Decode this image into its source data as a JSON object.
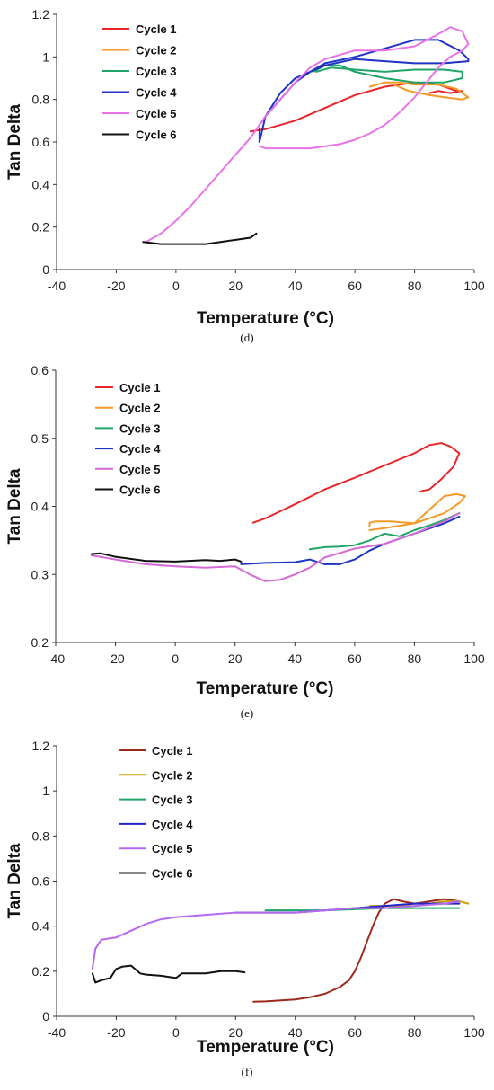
{
  "chart_data": [
    {
      "type": "line",
      "panel_label": "(d)",
      "xlabel": "Temperature (°C)",
      "ylabel": "Tan Delta",
      "xlim": [
        -40,
        100
      ],
      "ylim": [
        0,
        1.2
      ],
      "xticks": [
        -40,
        -20,
        0,
        20,
        40,
        60,
        80,
        100
      ],
      "yticks": [
        0,
        0.2,
        0.4,
        0.6,
        0.8,
        1,
        1.2
      ],
      "ytick_labels": [
        "0",
        "0.2",
        "0.4",
        "0.6",
        "0.8",
        "1",
        "1.2"
      ],
      "grid": false,
      "legend_position": "top-left",
      "series": [
        {
          "name": "Cycle 1",
          "color": "#e8262a",
          "x": [
            25,
            30,
            40,
            50,
            60,
            70,
            80,
            88,
            94,
            96,
            92,
            88,
            85
          ],
          "y": [
            0.65,
            0.66,
            0.7,
            0.76,
            0.82,
            0.86,
            0.88,
            0.87,
            0.84,
            0.84,
            0.83,
            0.84,
            0.83
          ]
        },
        {
          "name": "Cycle 2",
          "color": "#f39a2b",
          "x": [
            65,
            70,
            75,
            80,
            88,
            94,
            98,
            96,
            90,
            85,
            78,
            73
          ],
          "y": [
            0.86,
            0.88,
            0.88,
            0.87,
            0.87,
            0.85,
            0.81,
            0.8,
            0.81,
            0.82,
            0.84,
            0.87
          ]
        },
        {
          "name": "Cycle 3",
          "color": "#1fa567",
          "x": [
            46,
            50,
            55,
            60,
            70,
            80,
            90,
            96,
            96,
            90,
            80,
            70,
            60,
            52,
            47
          ],
          "y": [
            0.93,
            0.96,
            0.96,
            0.93,
            0.9,
            0.88,
            0.88,
            0.9,
            0.93,
            0.94,
            0.94,
            0.93,
            0.94,
            0.95,
            0.93
          ]
        },
        {
          "name": "Cycle 4",
          "color": "#1f33c4",
          "x": [
            28,
            30,
            35,
            40,
            45,
            50,
            60,
            70,
            80,
            88,
            95,
            98,
            98,
            90,
            80,
            70,
            60,
            50,
            45,
            40,
            35,
            30,
            28,
            28
          ],
          "y": [
            0.68,
            0.72,
            0.8,
            0.88,
            0.93,
            0.97,
            1.0,
            1.04,
            1.08,
            1.08,
            1.03,
            0.99,
            0.98,
            0.97,
            0.97,
            0.98,
            0.99,
            0.96,
            0.93,
            0.9,
            0.83,
            0.72,
            0.6,
            0.66
          ]
        },
        {
          "name": "Cycle 5",
          "color": "#e873e8",
          "x": [
            -10,
            -5,
            0,
            5,
            10,
            15,
            20,
            25,
            30,
            35,
            40,
            45,
            50,
            60,
            70,
            80,
            87,
            92,
            96,
            98,
            96,
            92,
            88,
            84,
            80,
            75,
            70,
            65,
            60,
            55,
            50,
            45,
            40,
            35,
            30,
            28
          ],
          "y": [
            0.13,
            0.17,
            0.23,
            0.3,
            0.38,
            0.46,
            0.54,
            0.62,
            0.72,
            0.8,
            0.88,
            0.95,
            0.99,
            1.03,
            1.03,
            1.05,
            1.1,
            1.14,
            1.12,
            1.06,
            1.03,
            1.0,
            0.95,
            0.88,
            0.81,
            0.74,
            0.68,
            0.64,
            0.61,
            0.59,
            0.58,
            0.57,
            0.57,
            0.57,
            0.57,
            0.58
          ]
        },
        {
          "name": "Cycle 6",
          "color": "#111111",
          "x": [
            -11,
            -5,
            0,
            5,
            10,
            15,
            20,
            25,
            27
          ],
          "y": [
            0.13,
            0.12,
            0.12,
            0.12,
            0.12,
            0.13,
            0.14,
            0.15,
            0.17
          ]
        }
      ]
    },
    {
      "type": "line",
      "panel_label": "(e)",
      "xlabel": "Temperature (°C)",
      "ylabel": "Tan Delta",
      "xlim": [
        -40,
        100
      ],
      "ylim": [
        0.2,
        0.6
      ],
      "xticks": [
        -40,
        -20,
        0,
        20,
        40,
        60,
        80,
        100
      ],
      "yticks": [
        0.2,
        0.3,
        0.4,
        0.5,
        0.6
      ],
      "ytick_labels": [
        "0.2",
        "0.3",
        "0.4",
        "0.5",
        "0.6"
      ],
      "grid": false,
      "legend_position": "top-left",
      "series": [
        {
          "name": "Cycle 1",
          "color": "#e8262a",
          "x": [
            26,
            30,
            40,
            50,
            60,
            70,
            80,
            85,
            89,
            92,
            95,
            93,
            89,
            85,
            82
          ],
          "y": [
            0.376,
            0.382,
            0.403,
            0.425,
            0.442,
            0.46,
            0.478,
            0.49,
            0.493,
            0.488,
            0.478,
            0.458,
            0.44,
            0.425,
            0.422
          ]
        },
        {
          "name": "Cycle 2",
          "color": "#f39a2b",
          "x": [
            65,
            70,
            80,
            90,
            95,
            97,
            94,
            90,
            80,
            72,
            67,
            65,
            65
          ],
          "y": [
            0.365,
            0.368,
            0.375,
            0.39,
            0.405,
            0.415,
            0.418,
            0.415,
            0.375,
            0.378,
            0.378,
            0.376,
            0.37
          ]
        },
        {
          "name": "Cycle 3",
          "color": "#1fa567",
          "x": [
            45,
            50,
            55,
            60,
            65,
            70,
            75,
            80,
            85,
            90,
            95
          ],
          "y": [
            0.337,
            0.34,
            0.341,
            0.343,
            0.35,
            0.36,
            0.356,
            0.365,
            0.372,
            0.38,
            0.39
          ]
        },
        {
          "name": "Cycle 4",
          "color": "#1f33c4",
          "x": [
            22,
            30,
            40,
            45,
            50,
            55,
            60,
            65,
            70,
            80,
            90,
            95
          ],
          "y": [
            0.315,
            0.317,
            0.318,
            0.322,
            0.315,
            0.315,
            0.322,
            0.335,
            0.345,
            0.36,
            0.375,
            0.385
          ]
        },
        {
          "name": "Cycle 5",
          "color": "#d569d5",
          "x": [
            -28,
            -20,
            -10,
            0,
            10,
            20,
            25,
            30,
            35,
            40,
            45,
            50,
            60,
            70,
            80,
            90,
            95
          ],
          "y": [
            0.328,
            0.322,
            0.315,
            0.312,
            0.31,
            0.312,
            0.3,
            0.29,
            0.292,
            0.3,
            0.31,
            0.325,
            0.338,
            0.345,
            0.36,
            0.378,
            0.39
          ]
        },
        {
          "name": "Cycle 6",
          "color": "#111111",
          "x": [
            -28,
            -25,
            -20,
            -10,
            0,
            10,
            15,
            20,
            22
          ],
          "y": [
            0.33,
            0.331,
            0.326,
            0.32,
            0.319,
            0.321,
            0.32,
            0.322,
            0.319
          ]
        }
      ]
    },
    {
      "type": "line",
      "panel_label": "(f)",
      "xlabel": "Temperature (°C)",
      "ylabel": "Tan Delta",
      "xlim": [
        -40,
        100
      ],
      "ylim": [
        0,
        1.2
      ],
      "xticks": [
        -40,
        -20,
        0,
        20,
        40,
        60,
        80,
        100
      ],
      "yticks": [
        0,
        0.2,
        0.4,
        0.6,
        0.8,
        1,
        1.2
      ],
      "ytick_labels": [
        "0",
        "0.2",
        "0.4",
        "0.6",
        "0.8",
        "1",
        "1.2"
      ],
      "grid": false,
      "legend_position": "top-left",
      "series": [
        {
          "name": "Cycle 1",
          "color": "#9b2a1d",
          "x": [
            26,
            30,
            40,
            45,
            50,
            55,
            58,
            60,
            62,
            64,
            66,
            68,
            70,
            73,
            76,
            80,
            85,
            90,
            95
          ],
          "y": [
            0.065,
            0.066,
            0.075,
            0.085,
            0.1,
            0.13,
            0.16,
            0.2,
            0.26,
            0.33,
            0.4,
            0.46,
            0.5,
            0.52,
            0.51,
            0.5,
            0.51,
            0.52,
            0.51
          ]
        },
        {
          "name": "Cycle 2",
          "color": "#c9a10b",
          "x": [
            65,
            70,
            75,
            80,
            85,
            90,
            95,
            98
          ],
          "y": [
            0.49,
            0.49,
            0.49,
            0.5,
            0.5,
            0.51,
            0.51,
            0.5
          ]
        },
        {
          "name": "Cycle 3",
          "color": "#1fa567",
          "x": [
            30,
            40,
            50,
            60,
            70,
            80,
            90,
            95
          ],
          "y": [
            0.47,
            0.47,
            0.47,
            0.475,
            0.48,
            0.48,
            0.48,
            0.48
          ]
        },
        {
          "name": "Cycle 4",
          "color": "#2323cc",
          "x": [
            20,
            30,
            40,
            50,
            60,
            70,
            80,
            90,
            95
          ],
          "y": [
            0.46,
            0.46,
            0.46,
            0.47,
            0.48,
            0.49,
            0.5,
            0.5,
            0.5
          ]
        },
        {
          "name": "Cycle 5",
          "color": "#b569f0",
          "x": [
            -28,
            -27,
            -25,
            -20,
            -15,
            -10,
            -5,
            0,
            10,
            20,
            30,
            40,
            50,
            60,
            70,
            80,
            90,
            95
          ],
          "y": [
            0.21,
            0.3,
            0.34,
            0.35,
            0.38,
            0.41,
            0.43,
            0.44,
            0.45,
            0.46,
            0.46,
            0.46,
            0.47,
            0.48,
            0.48,
            0.49,
            0.5,
            0.51
          ]
        },
        {
          "name": "Cycle 6",
          "color": "#111111",
          "x": [
            -28,
            -27,
            -25,
            -22,
            -20,
            -18,
            -15,
            -12,
            -10,
            -5,
            0,
            2,
            5,
            10,
            15,
            20,
            23
          ],
          "y": [
            0.19,
            0.15,
            0.16,
            0.17,
            0.21,
            0.22,
            0.225,
            0.19,
            0.185,
            0.18,
            0.17,
            0.19,
            0.19,
            0.19,
            0.2,
            0.2,
            0.195
          ]
        }
      ]
    }
  ]
}
